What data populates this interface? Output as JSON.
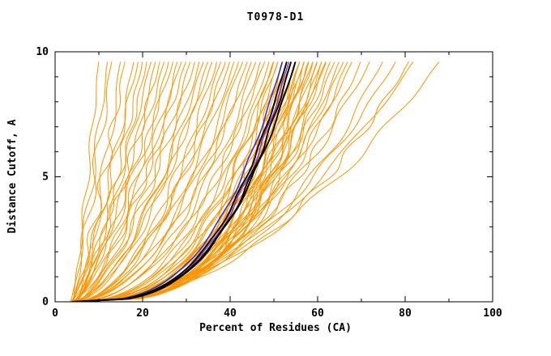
{
  "title": "T0978-D1",
  "chart_data": {
    "type": "line",
    "title": "T0978-D1",
    "xlabel": "Percent of Residues (CA)",
    "ylabel": "Distance Cutoff, A",
    "xlim": [
      0,
      100
    ],
    "ylim": [
      0,
      10
    ],
    "x_major_ticks": [
      0,
      20,
      40,
      60,
      80,
      100
    ],
    "x_minor_ticks": [
      10,
      30,
      50,
      70,
      90
    ],
    "y_major_ticks": [
      0,
      5,
      10
    ],
    "y_minor_ticks": [
      1,
      2,
      3,
      4,
      6,
      7,
      8,
      9
    ],
    "grid": false,
    "legend": "none",
    "curve_top_y": 9.65,
    "colors": {
      "model_curves": "#ff9400",
      "axis": "#000000",
      "highlight_black": "#000000",
      "highlight_blue": "#3333cc",
      "highlight_purple": "#7a33cc",
      "background": "#ffffff"
    },
    "note": "Each model curve is x = percent of CA residues under distance cutoff y; stored as [start_x_at_y0, end_x_at_top, shape_exponent]",
    "model_curves": [
      [
        4,
        10,
        0.85
      ],
      [
        3.5,
        12,
        0.8
      ],
      [
        4,
        13,
        0.9
      ],
      [
        5,
        15,
        0.75
      ],
      [
        4,
        16,
        0.8
      ],
      [
        3.5,
        18,
        0.7
      ],
      [
        4,
        19,
        0.85
      ],
      [
        4.5,
        20,
        0.75
      ],
      [
        4,
        21,
        0.7
      ],
      [
        5,
        22,
        0.8
      ],
      [
        4,
        23,
        0.65
      ],
      [
        3.5,
        24,
        0.75
      ],
      [
        4,
        25,
        0.7
      ],
      [
        5,
        26,
        0.65
      ],
      [
        4,
        27,
        0.75
      ],
      [
        4.5,
        28,
        0.6
      ],
      [
        4,
        29,
        0.7
      ],
      [
        3.5,
        30,
        0.65
      ],
      [
        4,
        31,
        0.6
      ],
      [
        5,
        32,
        0.65
      ],
      [
        4,
        33,
        0.55
      ],
      [
        4.5,
        34,
        0.6
      ],
      [
        4,
        35,
        0.55
      ],
      [
        3.5,
        36,
        0.6
      ],
      [
        4,
        37,
        0.5
      ],
      [
        5,
        38,
        0.55
      ],
      [
        4,
        39,
        0.5
      ],
      [
        4.5,
        40,
        0.55
      ],
      [
        4,
        41,
        0.5
      ],
      [
        3.5,
        42,
        0.45
      ],
      [
        4,
        43,
        0.5
      ],
      [
        5,
        44,
        0.45
      ],
      [
        4,
        45,
        0.5
      ],
      [
        4.5,
        46,
        0.45
      ],
      [
        4,
        47,
        0.4
      ],
      [
        3.5,
        48,
        0.45
      ],
      [
        4,
        49,
        0.4
      ],
      [
        5,
        50,
        0.42
      ],
      [
        4,
        50,
        0.36
      ],
      [
        4.5,
        51,
        0.4
      ],
      [
        4,
        51,
        0.35
      ],
      [
        3.5,
        52,
        0.38
      ],
      [
        4,
        52,
        0.33
      ],
      [
        5,
        53,
        0.36
      ],
      [
        4,
        53,
        0.32
      ],
      [
        4.5,
        54,
        0.35
      ],
      [
        4,
        54,
        0.31
      ],
      [
        3.5,
        54,
        0.38
      ],
      [
        4,
        55,
        0.34
      ],
      [
        5,
        55,
        0.3
      ],
      [
        4,
        55,
        0.37
      ],
      [
        4.5,
        56,
        0.33
      ],
      [
        4,
        56,
        0.3
      ],
      [
        3.5,
        56,
        0.36
      ],
      [
        4,
        57,
        0.32
      ],
      [
        5,
        57,
        0.29
      ],
      [
        4,
        57,
        0.35
      ],
      [
        4.5,
        58,
        0.31
      ],
      [
        4,
        58,
        0.34
      ],
      [
        3.5,
        59,
        0.3
      ],
      [
        4,
        59,
        0.33
      ],
      [
        5,
        60,
        0.31
      ],
      [
        4,
        60,
        0.35
      ],
      [
        4.5,
        61,
        0.32
      ],
      [
        4,
        61,
        0.36
      ],
      [
        3.5,
        62,
        0.33
      ],
      [
        4,
        62,
        0.37
      ],
      [
        5,
        63,
        0.34
      ],
      [
        4,
        64,
        0.36
      ],
      [
        4.5,
        65,
        0.35
      ],
      [
        4,
        66,
        0.38
      ],
      [
        3.5,
        67,
        0.36
      ],
      [
        4,
        68,
        0.4
      ],
      [
        5,
        70,
        0.38
      ],
      [
        4,
        72,
        0.42
      ],
      [
        4.5,
        75,
        0.4
      ],
      [
        4,
        78,
        0.45
      ],
      [
        3.5,
        81,
        0.42
      ],
      [
        4,
        82,
        0.48
      ],
      [
        5,
        88,
        0.5
      ]
    ],
    "highlight_curves": [
      {
        "s": 4,
        "e": 52,
        "p": 0.33,
        "color": "#3333cc",
        "width": 1.6
      },
      {
        "s": 4.5,
        "e": 53.5,
        "p": 0.32,
        "color": "#7a33cc",
        "width": 1.4
      },
      {
        "s": 4,
        "e": 53,
        "p": 0.32,
        "color": "#000000",
        "width": 1.9
      },
      {
        "s": 4,
        "e": 54,
        "p": 0.31,
        "color": "#000000",
        "width": 1.9
      },
      {
        "s": 4.5,
        "e": 55,
        "p": 0.33,
        "color": "#000000",
        "width": 1.9
      }
    ]
  }
}
